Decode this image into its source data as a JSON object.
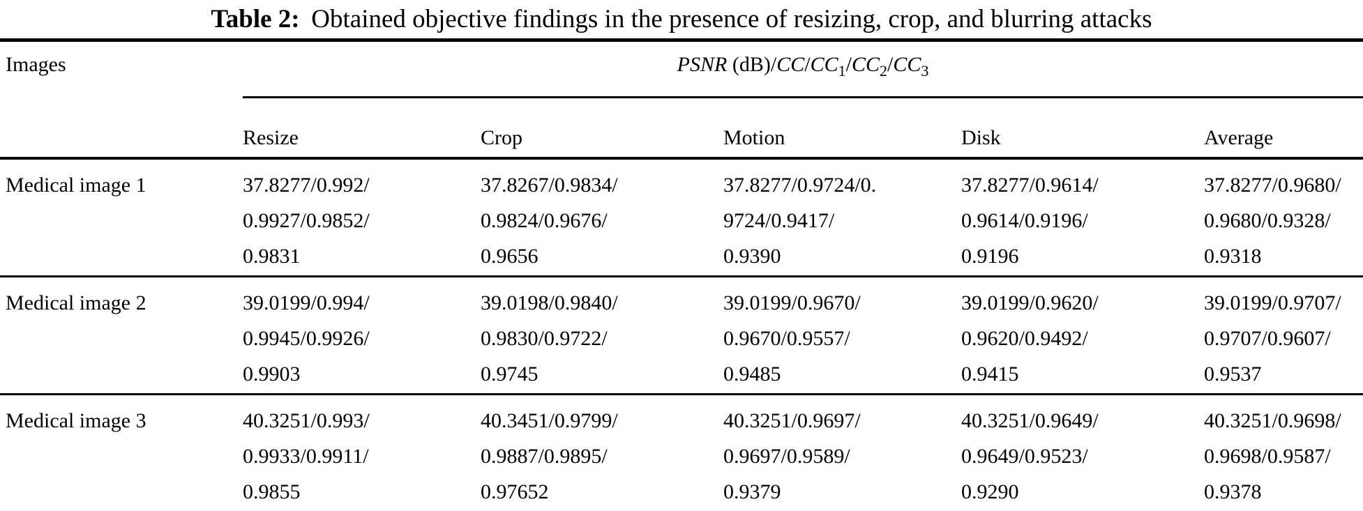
{
  "title": {
    "label": "Table 2:",
    "text": "Obtained objective findings in the presence of resizing, crop, and blurring attacks"
  },
  "table": {
    "images_header": "Images",
    "psnr_header": {
      "psnr": "PSNR",
      "db": "(dB)",
      "slash": "/",
      "cc": "CC",
      "sub1": "1",
      "sub2": "2",
      "sub3": "3"
    },
    "columns": [
      "Resize",
      "Crop",
      "Motion",
      "Disk",
      "Average"
    ],
    "rows": [
      {
        "label": "Medical image 1",
        "cells": [
          [
            "37.8277/0.992/",
            "0.9927/0.9852/",
            "0.9831"
          ],
          [
            "37.8267/0.9834/",
            "0.9824/0.9676/",
            "0.9656"
          ],
          [
            "37.8277/0.9724/0.",
            "9724/0.9417/",
            "0.9390"
          ],
          [
            "37.8277/0.9614/",
            "0.9614/0.9196/",
            "0.9196"
          ],
          [
            "37.8277/0.9680/",
            "0.9680/0.9328/",
            "0.9318"
          ]
        ]
      },
      {
        "label": "Medical image 2",
        "cells": [
          [
            "39.0199/0.994/",
            "0.9945/0.9926/",
            "0.9903"
          ],
          [
            "39.0198/0.9840/",
            "0.9830/0.9722/",
            "0.9745"
          ],
          [
            "39.0199/0.9670/",
            "0.9670/0.9557/",
            "0.9485"
          ],
          [
            "39.0199/0.9620/",
            "0.9620/0.9492/",
            "0.9415"
          ],
          [
            "39.0199/0.9707/",
            "0.9707/0.9607/",
            "0.9537"
          ]
        ]
      },
      {
        "label": "Medical image 3",
        "cells": [
          [
            "40.3251/0.993/",
            "0.9933/0.9911/",
            "0.9855"
          ],
          [
            "40.3451/0.9799/",
            "0.9887/0.9895/",
            "0.97652"
          ],
          [
            "40.3251/0.9697/",
            "0.9697/0.9589/",
            "0.9379"
          ],
          [
            "40.3251/0.9649/",
            "0.9649/0.9523/",
            "0.9290"
          ],
          [
            "40.3251/0.9698/",
            "0.9698/0.9587/",
            "0.9378"
          ]
        ]
      }
    ]
  },
  "colors": {
    "text": "#000000",
    "rule": "#000000",
    "background": "#ffffff"
  }
}
